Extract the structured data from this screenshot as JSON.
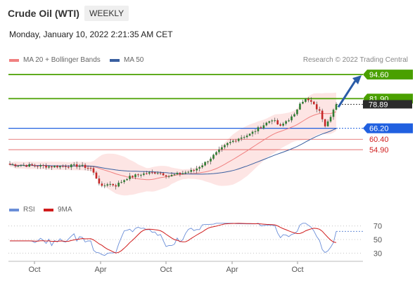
{
  "header": {
    "title": "Crude Oil (WTI)",
    "timeframe": "WEEKLY",
    "datetime": "Monday, January 10, 2022 2:21:35 AM CET"
  },
  "legend": {
    "ma20": "MA 20 + Bollinger Bands",
    "ma50": "MA 50",
    "credit": "Research © 2022 Trading Central"
  },
  "colors": {
    "ma20": "#f08080",
    "ma50": "#3a5fa0",
    "bands_fill": "#fde1df",
    "resistance": "#4aa000",
    "support": "#2060e0",
    "support_red": "#e05a5a",
    "candle_up": "#2e7d32",
    "candle_down": "#c62828",
    "rsi": "#6a8ed8",
    "rsi_ma": "#d01c1c",
    "arrow": "#2a5ca8"
  },
  "chart_data": [
    {
      "type": "line",
      "name": "price",
      "ylim": [
        33,
        98
      ],
      "x_tick_labels": [
        "Oct",
        "Apr",
        "Oct",
        "Apr",
        "Oct"
      ],
      "last_price": 78.89,
      "levels": [
        {
          "label": "94.60",
          "value": 94.6,
          "kind": "resistance"
        },
        {
          "label": "81.90",
          "value": 81.9,
          "kind": "resistance"
        },
        {
          "label": "78.89",
          "value": 78.89,
          "kind": "last"
        },
        {
          "label": "66.20",
          "value": 66.2,
          "kind": "support"
        },
        {
          "label": "60.40",
          "value": 60.4,
          "kind": "support_red"
        },
        {
          "label": "54.90",
          "value": 54.9,
          "kind": "support_red"
        }
      ],
      "arrow_target": 94.6
    },
    {
      "type": "line",
      "name": "rsi_panel",
      "series": [
        {
          "name": "RSI"
        },
        {
          "name": "9MA"
        }
      ],
      "ylim": [
        20,
        80
      ],
      "y_ticks": [
        70,
        50,
        30
      ],
      "y_tick_labels": [
        "70",
        "50",
        "30"
      ],
      "last_rsi": 62
    }
  ]
}
